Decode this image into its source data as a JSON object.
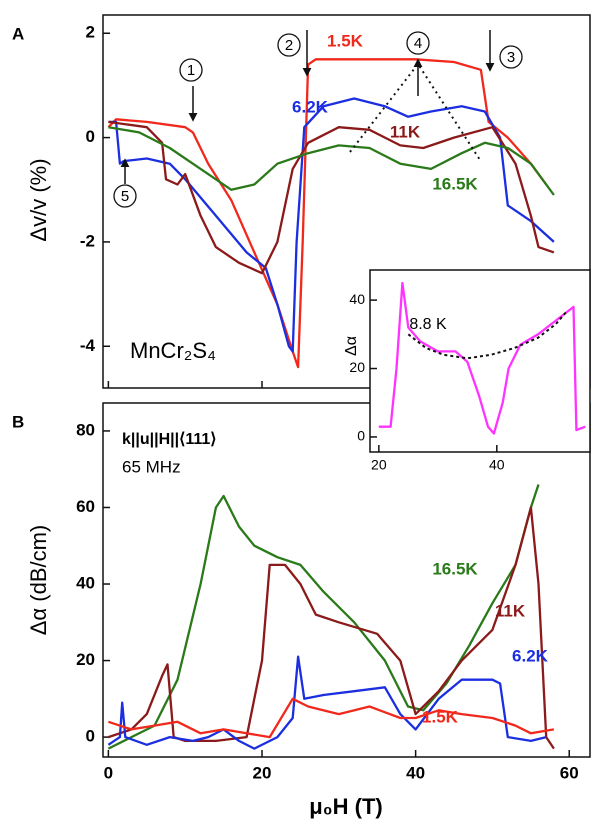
{
  "chart_data": [
    {
      "type": "line",
      "panel_label": "A",
      "ylabel": "Δv/v (%)",
      "annotation": "MnCr₂S₄",
      "xlim": [
        -0.7,
        62.7
      ],
      "ylim": [
        -4.8,
        2.35
      ],
      "xticks": [
        0,
        20,
        40,
        60
      ],
      "yticks": [
        -4,
        -2,
        0,
        2
      ],
      "markers": [
        "1",
        "2",
        "3",
        "4",
        "5"
      ],
      "series": [
        {
          "name": "1.5K",
          "color": "#f0291c",
          "x": [
            0,
            1,
            5,
            10,
            11,
            13,
            16,
            19,
            22,
            24,
            24.7,
            25.3,
            26,
            27,
            35,
            40,
            45,
            48.5,
            49.5,
            52,
            55,
            57
          ],
          "values": [
            0.2,
            0.35,
            0.3,
            0.2,
            0.1,
            -0.5,
            -1.2,
            -2.2,
            -3.2,
            -4.1,
            -4.4,
            -2,
            1.4,
            1.5,
            1.5,
            1.5,
            1.45,
            1.3,
            0.3,
            0,
            -0.5,
            -0.9
          ]
        },
        {
          "name": "6.2K",
          "color": "#1b2fe0",
          "x": [
            0,
            1,
            1.5,
            2,
            5,
            8,
            10,
            14,
            18,
            20.5,
            22,
            23.5,
            24,
            24.5,
            25.5,
            28,
            32,
            36,
            39,
            42,
            46,
            49,
            51,
            52,
            55,
            58
          ],
          "values": [
            0.3,
            0.3,
            -0.5,
            -0.45,
            -0.4,
            -0.5,
            -0.8,
            -1.5,
            -2.2,
            -2.5,
            -3.2,
            -4,
            -4.1,
            -2,
            0.2,
            0.6,
            0.75,
            0.6,
            0.4,
            0.5,
            0.6,
            0.5,
            0,
            -1.3,
            -1.6,
            -2
          ]
        },
        {
          "name": "11K",
          "color": "#8b1a1a",
          "x": [
            0,
            5,
            7,
            7.5,
            9,
            10,
            12,
            14,
            17,
            20,
            22,
            24,
            26,
            30,
            34,
            38,
            41,
            45,
            50,
            53,
            55,
            56,
            58
          ],
          "values": [
            0.3,
            0.2,
            -0.1,
            -0.8,
            -0.9,
            -0.7,
            -1.5,
            -2.1,
            -2.4,
            -2.6,
            -2,
            -0.6,
            -0.1,
            0.2,
            0.15,
            -0.15,
            -0.2,
            0,
            0.2,
            -0.5,
            -1.5,
            -2.1,
            -2.2
          ]
        },
        {
          "name": "16.5K",
          "color": "#2a7a1a",
          "x": [
            0,
            4,
            8,
            12,
            16,
            19,
            22,
            26,
            30,
            34,
            38,
            42,
            46,
            49,
            52,
            55,
            58
          ],
          "values": [
            0.2,
            0.1,
            -0.2,
            -0.6,
            -1,
            -0.9,
            -0.5,
            -0.3,
            -0.15,
            -0.2,
            -0.5,
            -0.6,
            -0.3,
            -0.1,
            -0.2,
            -0.5,
            -1.1
          ]
        }
      ]
    },
    {
      "type": "line",
      "panel_label": "B",
      "ylabel": "Δα (dB/cm)",
      "xlabel": "μ₀H (T)",
      "annotations": [
        "k||u||H||⟨111⟩",
        "65 MHz"
      ],
      "xlim": [
        -0.7,
        62.7
      ],
      "ylim": [
        -5.2,
        87.3
      ],
      "xticks": [
        0,
        20,
        40,
        60
      ],
      "yticks": [
        0,
        20,
        40,
        60,
        80
      ],
      "series": [
        {
          "name": "16.5K",
          "color": "#2a7a1a",
          "x": [
            0,
            3,
            6,
            9,
            12,
            14,
            15,
            17,
            19,
            22,
            25,
            28,
            32,
            36,
            39,
            41,
            44,
            47,
            50,
            53,
            55,
            56
          ],
          "values": [
            -3,
            0,
            3,
            15,
            40,
            60,
            63,
            55,
            50,
            47,
            45,
            38,
            30,
            20,
            8,
            7,
            14,
            24,
            35,
            45,
            60,
            66
          ]
        },
        {
          "name": "11K",
          "color": "#8b1a1a",
          "x": [
            0,
            3,
            5,
            7,
            7.7,
            8.5,
            10,
            14,
            18,
            20,
            21,
            23,
            25,
            27,
            30,
            35,
            38,
            40,
            43,
            46,
            50,
            53,
            55,
            56,
            57,
            58
          ],
          "values": [
            0,
            2,
            6,
            16,
            19,
            0,
            -1,
            -1,
            0,
            20,
            45,
            45,
            40,
            32,
            30,
            27,
            20,
            6,
            12,
            20,
            28,
            45,
            60,
            40,
            0,
            -3
          ]
        },
        {
          "name": "6.2K",
          "color": "#1b2fe0",
          "x": [
            0,
            1.5,
            1.8,
            2.2,
            5,
            8,
            11,
            13,
            15,
            17,
            19,
            22,
            24,
            24.7,
            25.5,
            28,
            32,
            36,
            38,
            40,
            43,
            46,
            50,
            51,
            52,
            55,
            57
          ],
          "values": [
            -2,
            0,
            9,
            0,
            -2,
            0,
            -1,
            0,
            2,
            -1,
            -3,
            0,
            5,
            21,
            10,
            11,
            12,
            13,
            6,
            2,
            10,
            15,
            15,
            14,
            0,
            -1,
            0
          ]
        },
        {
          "name": "1.5K",
          "color": "#f0291c",
          "x": [
            0,
            3,
            6,
            9,
            12,
            15,
            18,
            21,
            24,
            26,
            30,
            34,
            38,
            40,
            43,
            46,
            50,
            53,
            55,
            58
          ],
          "values": [
            4,
            2,
            3,
            4,
            1,
            2,
            1,
            0,
            10,
            8,
            6,
            8,
            5,
            5,
            7,
            6,
            5,
            3,
            1,
            2
          ]
        }
      ]
    },
    {
      "type": "line",
      "ylabel": "Δα",
      "annotation": "8.8 K",
      "xlim": [
        18.5,
        55.8
      ],
      "ylim": [
        -4.4,
        48.8
      ],
      "xticks": [
        20,
        40
      ],
      "yticks": [
        0,
        20,
        40
      ],
      "series": [
        {
          "color": "#ff33ff",
          "x": [
            20,
            22,
            23,
            24,
            25,
            27,
            30,
            33,
            35,
            37,
            38.5,
            39.5,
            41,
            42,
            44,
            47,
            50,
            53,
            53.5,
            55
          ],
          "values": [
            3,
            3,
            20,
            45,
            32,
            28,
            25,
            25,
            22,
            12,
            3,
            1,
            10,
            20,
            27,
            30,
            34,
            38,
            2,
            3
          ]
        },
        {
          "color": "#111111",
          "dashed": true,
          "x": [
            25,
            28,
            31,
            35,
            39,
            43,
            47,
            50,
            52
          ],
          "values": [
            30,
            26,
            24,
            23,
            24,
            26,
            29,
            33,
            37
          ]
        }
      ]
    }
  ]
}
